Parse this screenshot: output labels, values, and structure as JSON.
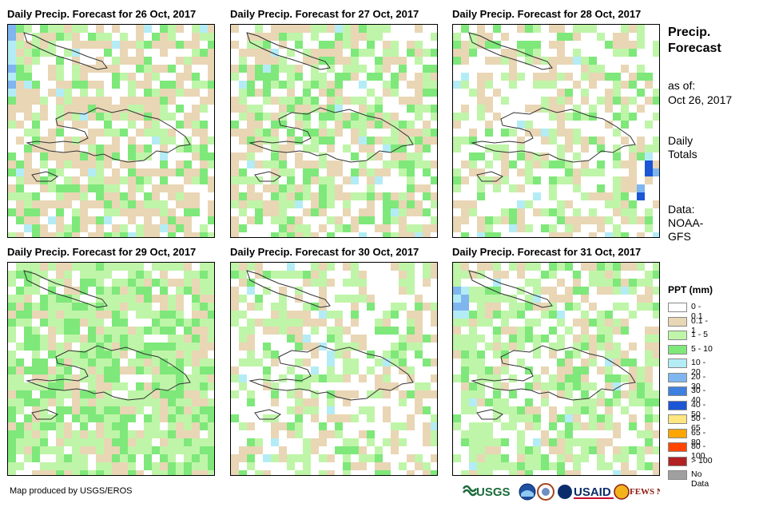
{
  "panels": [
    {
      "title": "Daily Precip. Forecast for 26 Oct, 2017"
    },
    {
      "title": "Daily Precip. Forecast for 27 Oct, 2017"
    },
    {
      "title": "Daily Precip. Forecast for 28 Oct, 2017"
    },
    {
      "title": "Daily Precip. Forecast for 29 Oct, 2017"
    },
    {
      "title": "Daily Precip. Forecast for 30 Oct, 2017"
    },
    {
      "title": "Daily Precip. Forecast for 31 Oct, 2017"
    }
  ],
  "side": {
    "title": "Precip. Forecast",
    "as_of_label": "as of:",
    "as_of_date": "Oct 26, 2017",
    "totals": "Daily Totals",
    "data_label": "Data:",
    "data_source": "NOAA-GFS"
  },
  "legend": {
    "title": "PPT (mm)",
    "items": [
      {
        "label": "0 - 0.1",
        "color": "#ffffff"
      },
      {
        "label": "0.1 - 1",
        "color": "#e9d6b5"
      },
      {
        "label": "1 - 5",
        "color": "#bff5a8"
      },
      {
        "label": "5 - 10",
        "color": "#7ee87a"
      },
      {
        "label": "10 - 20",
        "color": "#b4ecf6"
      },
      {
        "label": "20 - 30",
        "color": "#7fb6f0"
      },
      {
        "label": "30 - 40",
        "color": "#3f7fe0"
      },
      {
        "label": "40 - 50",
        "color": "#1c56d6"
      },
      {
        "label": "50 - 65",
        "color": "#ffe680"
      },
      {
        "label": "65 - 80",
        "color": "#ffa500"
      },
      {
        "label": "80 - 100",
        "color": "#ff4500"
      },
      {
        "label": "> 100",
        "color": "#b22222"
      },
      {
        "label": "No Data",
        "color": "#a0a0a0"
      }
    ]
  },
  "credit": "Map produced by USGS/EROS",
  "logos": {
    "usgs": "USGS",
    "usaid": "USAID",
    "fewsnet": "FEWS NET"
  }
}
